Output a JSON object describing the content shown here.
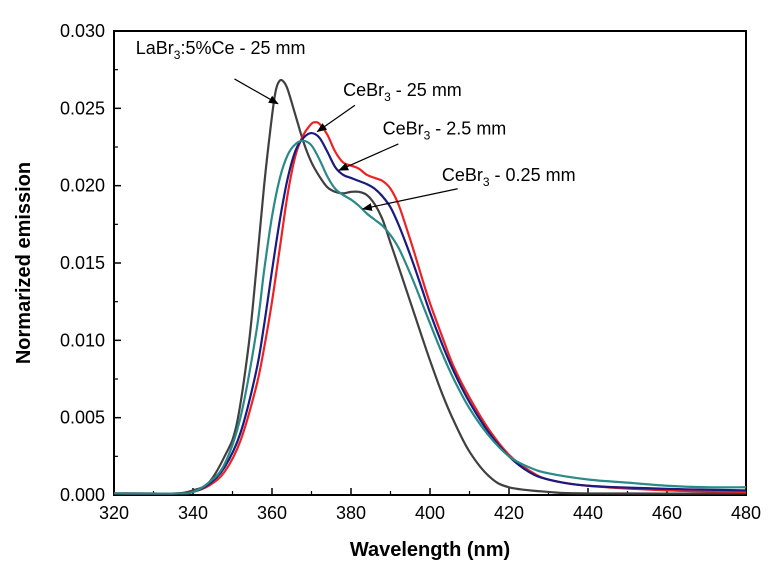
{
  "chart_data": {
    "type": "line",
    "xlabel": "Wavelength (nm)",
    "ylabel": "Normarized emission",
    "xlim": [
      320,
      480
    ],
    "ylim": [
      0.0,
      0.03
    ],
    "x_ticks": [
      "320",
      "340",
      "360",
      "380",
      "400",
      "420",
      "440",
      "460",
      "480"
    ],
    "y_ticks": [
      "0.000",
      "0.005",
      "0.010",
      "0.015",
      "0.020",
      "0.025",
      "0.030"
    ],
    "grid": false,
    "series": [
      {
        "name": "LaBr3:5%Ce - 25 mm",
        "color": "#404040",
        "points": [
          [
            320,
            0.0001
          ],
          [
            330,
            0.0001
          ],
          [
            336,
            0.0001
          ],
          [
            340,
            0.0003
          ],
          [
            344,
            0.0008
          ],
          [
            348,
            0.0025
          ],
          [
            351,
            0.0045
          ],
          [
            354,
            0.0095
          ],
          [
            356,
            0.0145
          ],
          [
            358,
            0.02
          ],
          [
            360,
            0.0245
          ],
          [
            361,
            0.0262
          ],
          [
            362,
            0.0268
          ],
          [
            363,
            0.0267
          ],
          [
            364,
            0.0262
          ],
          [
            366,
            0.0245
          ],
          [
            368,
            0.0228
          ],
          [
            370,
            0.0215
          ],
          [
            372,
            0.0206
          ],
          [
            374,
            0.0199
          ],
          [
            376,
            0.0196
          ],
          [
            378,
            0.0195
          ],
          [
            380,
            0.0196
          ],
          [
            382,
            0.0196
          ],
          [
            384,
            0.0194
          ],
          [
            386,
            0.0188
          ],
          [
            388,
            0.0178
          ],
          [
            390,
            0.0163
          ],
          [
            392,
            0.0148
          ],
          [
            395,
            0.0125
          ],
          [
            398,
            0.0102
          ],
          [
            400,
            0.0087
          ],
          [
            403,
            0.0066
          ],
          [
            406,
            0.0048
          ],
          [
            410,
            0.0028
          ],
          [
            415,
            0.0012
          ],
          [
            420,
            0.0005
          ],
          [
            430,
            0.0002
          ],
          [
            440,
            0.0001
          ],
          [
            480,
            0.0001
          ]
        ]
      },
      {
        "name": "CeBr3 - 25 mm",
        "color": "#ee2222",
        "points": [
          [
            320,
            0.0001
          ],
          [
            336,
            0.0001
          ],
          [
            340,
            0.0002
          ],
          [
            344,
            0.0006
          ],
          [
            348,
            0.0015
          ],
          [
            352,
            0.0035
          ],
          [
            356,
            0.007
          ],
          [
            358,
            0.0095
          ],
          [
            360,
            0.0125
          ],
          [
            362,
            0.016
          ],
          [
            364,
            0.0195
          ],
          [
            366,
            0.022
          ],
          [
            368,
            0.0233
          ],
          [
            370,
            0.024
          ],
          [
            371,
            0.0241
          ],
          [
            372,
            0.024
          ],
          [
            374,
            0.0233
          ],
          [
            376,
            0.0222
          ],
          [
            378,
            0.0215
          ],
          [
            380,
            0.0213
          ],
          [
            382,
            0.0211
          ],
          [
            384,
            0.0207
          ],
          [
            386,
            0.0205
          ],
          [
            388,
            0.0203
          ],
          [
            390,
            0.0198
          ],
          [
            392,
            0.0188
          ],
          [
            394,
            0.0173
          ],
          [
            396,
            0.0157
          ],
          [
            398,
            0.014
          ],
          [
            400,
            0.0124
          ],
          [
            403,
            0.0103
          ],
          [
            406,
            0.0083
          ],
          [
            410,
            0.0063
          ],
          [
            415,
            0.0042
          ],
          [
            420,
            0.0026
          ],
          [
            425,
            0.0016
          ],
          [
            430,
            0.001
          ],
          [
            440,
            0.0006
          ],
          [
            460,
            0.0003
          ],
          [
            480,
            0.0002
          ]
        ]
      },
      {
        "name": "CeBr3 - 2.5 mm",
        "color": "#1a1a80",
        "points": [
          [
            320,
            0.0001
          ],
          [
            336,
            0.0001
          ],
          [
            340,
            0.0002
          ],
          [
            344,
            0.0007
          ],
          [
            348,
            0.0018
          ],
          [
            352,
            0.004
          ],
          [
            356,
            0.008
          ],
          [
            358,
            0.011
          ],
          [
            360,
            0.0145
          ],
          [
            362,
            0.0178
          ],
          [
            364,
            0.0205
          ],
          [
            366,
            0.0223
          ],
          [
            368,
            0.0231
          ],
          [
            370,
            0.0234
          ],
          [
            372,
            0.0231
          ],
          [
            374,
            0.0222
          ],
          [
            376,
            0.0212
          ],
          [
            378,
            0.0207
          ],
          [
            380,
            0.0205
          ],
          [
            382,
            0.0203
          ],
          [
            384,
            0.0201
          ],
          [
            386,
            0.0198
          ],
          [
            388,
            0.0193
          ],
          [
            390,
            0.0186
          ],
          [
            392,
            0.0175
          ],
          [
            394,
            0.0162
          ],
          [
            396,
            0.0148
          ],
          [
            398,
            0.0133
          ],
          [
            400,
            0.0118
          ],
          [
            403,
            0.0098
          ],
          [
            406,
            0.008
          ],
          [
            410,
            0.006
          ],
          [
            415,
            0.004
          ],
          [
            420,
            0.0025
          ],
          [
            425,
            0.0015
          ],
          [
            430,
            0.001
          ],
          [
            440,
            0.0006
          ],
          [
            460,
            0.0004
          ],
          [
            480,
            0.0003
          ]
        ]
      },
      {
        "name": "CeBr3 - 0.25 mm",
        "color": "#2a8a88",
        "points": [
          [
            320,
            0.0001
          ],
          [
            336,
            0.0001
          ],
          [
            340,
            0.0002
          ],
          [
            344,
            0.0008
          ],
          [
            348,
            0.002
          ],
          [
            352,
            0.005
          ],
          [
            356,
            0.0105
          ],
          [
            358,
            0.0145
          ],
          [
            360,
            0.018
          ],
          [
            362,
            0.0205
          ],
          [
            364,
            0.022
          ],
          [
            366,
            0.0227
          ],
          [
            368,
            0.0229
          ],
          [
            370,
            0.0226
          ],
          [
            372,
            0.0217
          ],
          [
            374,
            0.0206
          ],
          [
            376,
            0.0198
          ],
          [
            378,
            0.0194
          ],
          [
            380,
            0.0191
          ],
          [
            382,
            0.0187
          ],
          [
            384,
            0.0182
          ],
          [
            386,
            0.0178
          ],
          [
            388,
            0.0174
          ],
          [
            390,
            0.0168
          ],
          [
            392,
            0.016
          ],
          [
            394,
            0.0149
          ],
          [
            396,
            0.0137
          ],
          [
            398,
            0.0124
          ],
          [
            400,
            0.0111
          ],
          [
            403,
            0.0092
          ],
          [
            406,
            0.0075
          ],
          [
            410,
            0.0056
          ],
          [
            415,
            0.0038
          ],
          [
            420,
            0.0025
          ],
          [
            425,
            0.0018
          ],
          [
            430,
            0.0014
          ],
          [
            440,
            0.001
          ],
          [
            450,
            0.0008
          ],
          [
            460,
            0.0006
          ],
          [
            470,
            0.0005
          ],
          [
            480,
            0.0005
          ]
        ]
      }
    ],
    "annotations": [
      {
        "parts": [
          {
            "t": "LaBr"
          },
          {
            "t": "3",
            "sub": true
          },
          {
            "t": ":5%Ce - 25 mm"
          }
        ],
        "text_at": [
          325.5,
          0.0285
        ],
        "arrow_from": [
          350.5,
          0.0269
        ],
        "arrow_to": [
          361.5,
          0.0253
        ]
      },
      {
        "parts": [
          {
            "t": "CeBr"
          },
          {
            "t": "3",
            "sub": true
          },
          {
            "t": " - 25 mm"
          }
        ],
        "text_at": [
          378,
          0.0258
        ],
        "arrow_from": [
          381,
          0.0252
        ],
        "arrow_to": [
          371.5,
          0.0235
        ]
      },
      {
        "parts": [
          {
            "t": "CeBr"
          },
          {
            "t": "3",
            "sub": true
          },
          {
            "t": " - 2.5 mm"
          }
        ],
        "text_at": [
          388,
          0.0233
        ],
        "arrow_from": [
          392,
          0.0227
        ],
        "arrow_to": [
          377,
          0.021
        ]
      },
      {
        "parts": [
          {
            "t": "CeBr"
          },
          {
            "t": "3",
            "sub": true
          },
          {
            "t": " - 0.25 mm"
          }
        ],
        "text_at": [
          403,
          0.0203
        ],
        "arrow_from": [
          407,
          0.0198
        ],
        "arrow_to": [
          383,
          0.0185
        ]
      }
    ]
  }
}
